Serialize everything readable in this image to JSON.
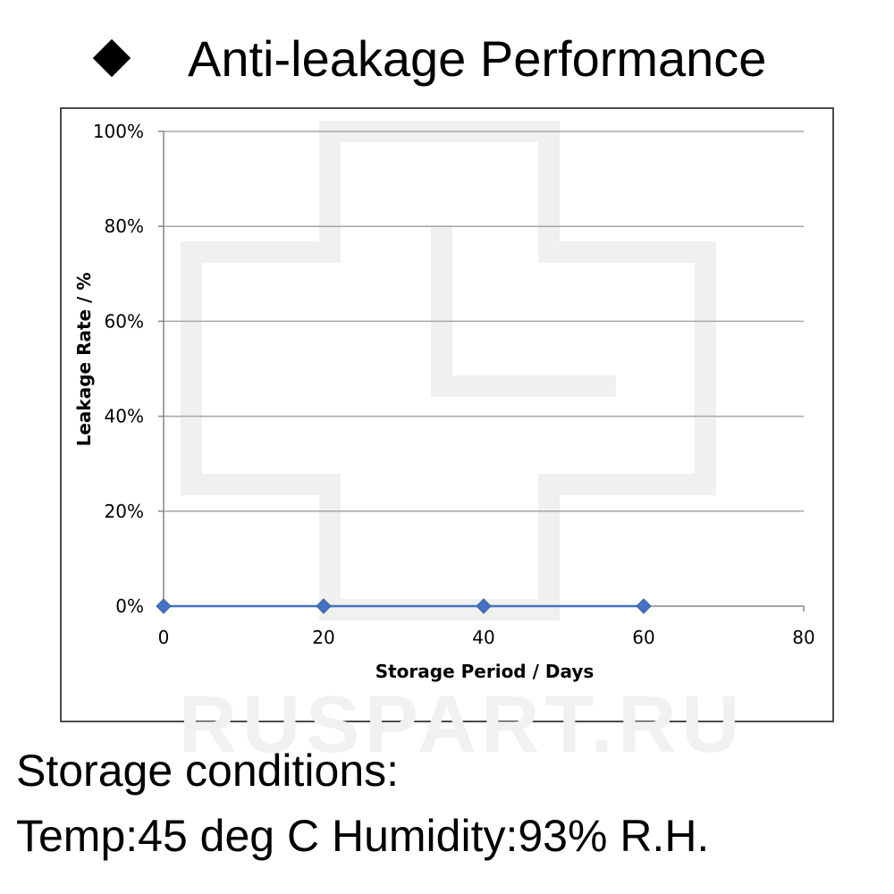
{
  "header": {
    "title": "Anti-leakage Performance",
    "bullet_icon": "diamond-bullet-icon"
  },
  "chart_data": {
    "type": "line",
    "title": "",
    "xlabel": "Storage Period / Days",
    "ylabel": "Leakage Rate / %",
    "x": [
      0,
      20,
      40,
      60
    ],
    "series": [
      {
        "values": [
          0,
          0,
          0,
          0
        ]
      }
    ],
    "xlim": [
      0,
      80
    ],
    "ylim": [
      0,
      100
    ],
    "x_ticks": [
      "0",
      "20",
      "40",
      "60",
      "80"
    ],
    "y_ticks": [
      "0%",
      "20%",
      "40%",
      "60%",
      "80%",
      "100%"
    ],
    "grid": "horizontal",
    "marker": "diamond",
    "colors": {
      "series": "#4472c4",
      "grid": "#a6a6a6",
      "axis": "#868686"
    }
  },
  "watermark": {
    "text": "RUSPART.RU"
  },
  "conditions": {
    "line1": "Storage conditions:",
    "line2": "Temp:45 deg C   Humidity:93%   R.H."
  }
}
